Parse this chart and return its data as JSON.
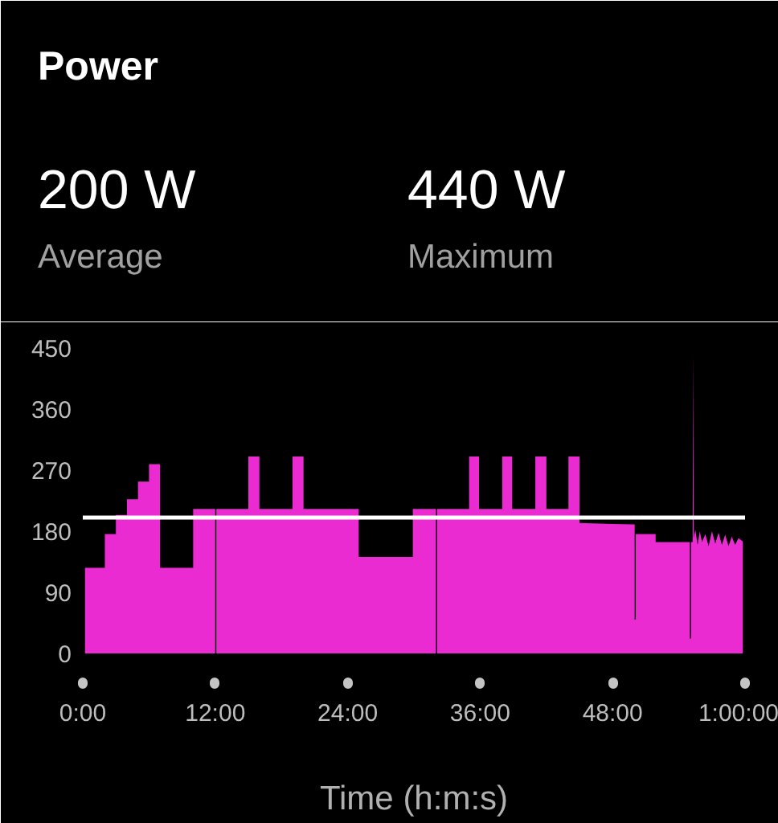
{
  "chart_data": {
    "type": "area",
    "title": "Power",
    "annotations": [
      "200 W",
      "Average",
      "440 W",
      "Maximum"
    ],
    "xlabel": "Time (h:m:s)",
    "x": [
      0.2,
      2.0,
      2.0,
      3.0,
      3.0,
      4.0,
      4.0,
      5.0,
      5.0,
      6.0,
      6.0,
      7.0,
      7.0,
      10.0,
      10.0,
      12.0,
      12.0,
      12.1,
      12.1,
      15.0,
      15.0,
      16.0,
      16.0,
      19.0,
      19.0,
      20.0,
      20.0,
      25.0,
      25.0,
      29.9,
      29.9,
      32.0,
      32.0,
      32.1,
      32.1,
      35.0,
      35.0,
      35.9,
      35.9,
      38.0,
      38.0,
      38.9,
      38.9,
      41.0,
      41.0,
      42.0,
      42.0,
      44.0,
      44.0,
      45.0,
      45.0,
      50.0,
      50.0,
      50.1,
      50.1,
      51.9,
      51.9,
      55.0,
      55.0,
      55.1,
      55.1,
      55.25,
      55.3,
      55.35,
      55.5,
      55.7,
      55.9,
      56.1,
      56.4,
      56.7,
      57.0,
      57.3,
      57.6,
      57.9,
      58.2,
      58.5,
      58.8,
      59.1,
      59.4,
      59.8
    ],
    "series": [
      {
        "color": "#e92bd1",
        "values": [
          126,
          126,
          176,
          176,
          204,
          204,
          227,
          227,
          253,
          253,
          279,
          279,
          126,
          126,
          213,
          213,
          0,
          0,
          213,
          213,
          290,
          290,
          213,
          213,
          290,
          290,
          213,
          213,
          142,
          142,
          213,
          213,
          0,
          0,
          213,
          213,
          290,
          290,
          213,
          213,
          290,
          290,
          213,
          213,
          290,
          290,
          213,
          213,
          290,
          290,
          192,
          190,
          50,
          50,
          176,
          176,
          164,
          164,
          22,
          22,
          164,
          164,
          440,
          170,
          182,
          160,
          180,
          164,
          176,
          158,
          180,
          162,
          178,
          160,
          175,
          158,
          172,
          160,
          170,
          165
        ]
      }
    ],
    "xlim": [
      0,
      60
    ],
    "xticks": [
      {
        "value": 0,
        "label": "0:00"
      },
      {
        "value": 12,
        "label": "12:00"
      },
      {
        "value": 24,
        "label": "24:00"
      },
      {
        "value": 36,
        "label": "36:00"
      },
      {
        "value": 48,
        "label": "48:00"
      },
      {
        "value": 60,
        "label": "1:00:00"
      }
    ],
    "ylim": [
      0,
      450
    ],
    "yticks": [
      0,
      90,
      180,
      270,
      360,
      450
    ],
    "ref_lines": [
      {
        "axis": "y",
        "value": 200,
        "color": "#ffffff"
      }
    ]
  }
}
